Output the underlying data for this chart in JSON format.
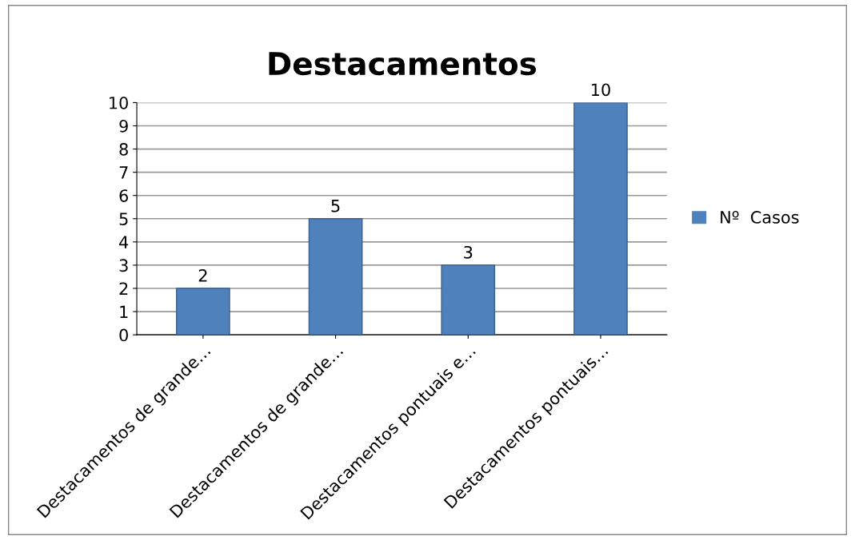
{
  "chart_data": {
    "type": "bar",
    "title": "Destacamentos",
    "categories": [
      "Destacamentos de grande…",
      "Destacamentos de grande…",
      "Destacamentos pontuais e…",
      "Destacamentos pontuais…"
    ],
    "series": [
      {
        "name": "Nº  Casos",
        "color": "#4f81bd",
        "values": [
          2,
          5,
          3,
          10
        ]
      }
    ],
    "ylim": [
      0,
      10
    ],
    "yticks": [
      0,
      1,
      2,
      3,
      4,
      5,
      6,
      7,
      8,
      9,
      10
    ],
    "grid": "y",
    "legend": "right",
    "data_labels": true
  }
}
